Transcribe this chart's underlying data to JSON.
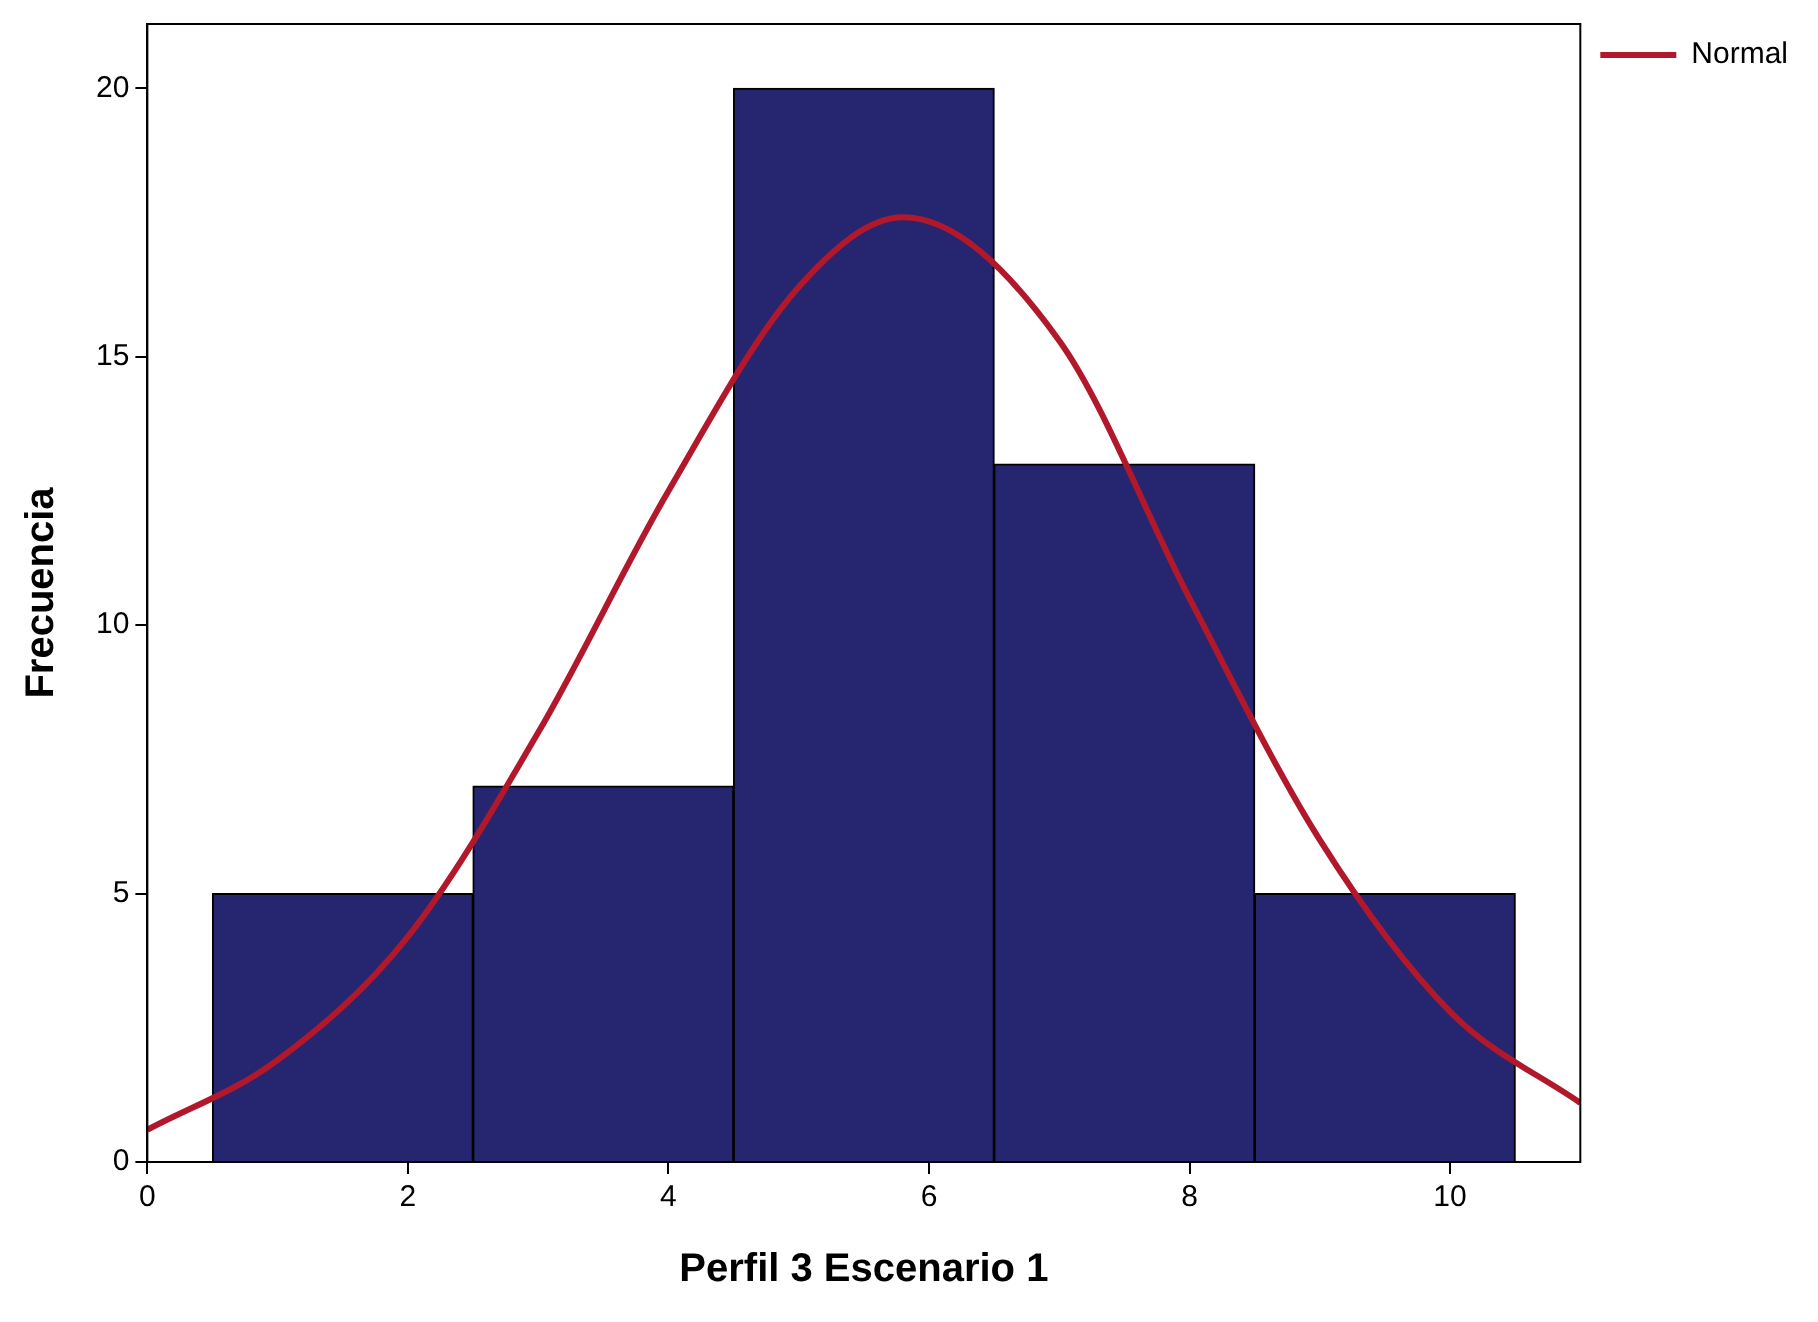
{
  "chart_data": {
    "type": "histogram",
    "xlabel": "Perfil 3 Escenario 1",
    "ylabel": "Frecuencia",
    "bins": [
      0.5,
      2.5,
      4.5,
      6.5,
      8.5,
      10.5
    ],
    "values": [
      5,
      7,
      20,
      13,
      5
    ],
    "color": "#25266f",
    "series": [
      {
        "type": "line",
        "name": "Normal",
        "color": "#b2182b",
        "x": [
          0,
          1,
          2,
          3,
          4,
          5,
          5.8,
          7,
          8,
          9,
          10,
          11
        ],
        "values": [
          0.6,
          1.9,
          4.2,
          8,
          12.5,
          16.3,
          17.6,
          15.3,
          10.5,
          6,
          2.8,
          1.1
        ]
      }
    ],
    "xlim": [
      0,
      11
    ],
    "xticks": [
      0,
      2,
      4,
      6,
      8,
      10
    ],
    "ylim": [
      0,
      21.2
    ],
    "yticks": [
      0,
      5,
      10,
      15,
      20
    ],
    "grid": false,
    "legend": "top right",
    "marker": "none",
    "line_style": "solid"
  }
}
